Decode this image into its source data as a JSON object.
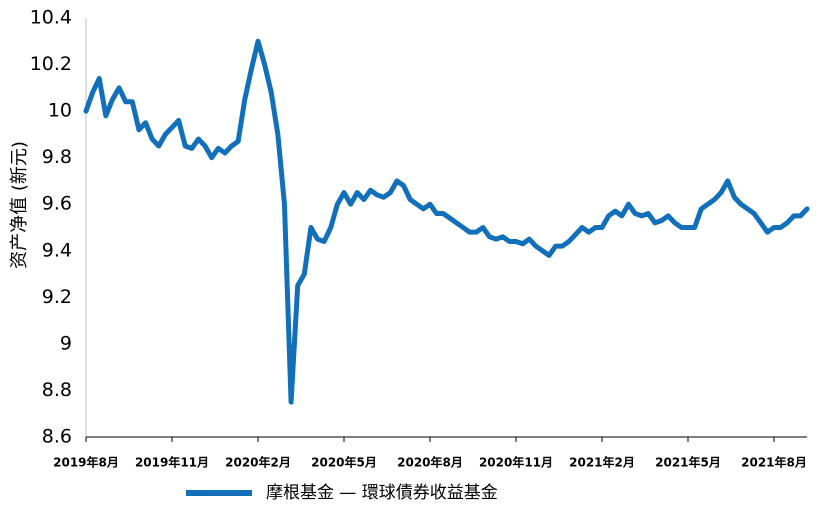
{
  "chart_data": {
    "type": "line",
    "y_label": "资产净值 (新元)",
    "categories": [
      "2019年8月",
      null,
      null,
      null,
      null,
      null,
      null,
      null,
      null,
      null,
      null,
      null,
      null,
      "2019年11月",
      null,
      null,
      null,
      null,
      null,
      null,
      null,
      null,
      null,
      null,
      null,
      null,
      "2020年2月",
      null,
      null,
      null,
      null,
      null,
      null,
      null,
      null,
      null,
      null,
      null,
      null,
      "2020年5月",
      null,
      null,
      null,
      null,
      null,
      null,
      null,
      null,
      null,
      null,
      null,
      null,
      "2020年8月",
      null,
      null,
      null,
      null,
      null,
      null,
      null,
      null,
      null,
      null,
      null,
      null,
      "2020年11月",
      null,
      null,
      null,
      null,
      null,
      null,
      null,
      null,
      null,
      null,
      null,
      null,
      "2021年2月",
      null,
      null,
      null,
      null,
      null,
      null,
      null,
      null,
      null,
      null,
      null,
      null,
      "2021年5月",
      null,
      null,
      null,
      null,
      null,
      null,
      null,
      null,
      null,
      null,
      null,
      null,
      "2021年8月",
      null,
      null,
      null,
      null,
      null
    ],
    "series": [
      {
        "name": "摩根基金 — 環球債券收益基金",
        "color": "#1170b9",
        "values": [
          10.0,
          10.08,
          10.14,
          9.98,
          10.05,
          10.1,
          10.04,
          10.04,
          9.92,
          9.95,
          9.88,
          9.85,
          9.9,
          9.93,
          9.96,
          9.85,
          9.84,
          9.88,
          9.85,
          9.8,
          9.84,
          9.82,
          9.85,
          9.87,
          10.05,
          10.18,
          10.3,
          10.2,
          10.08,
          9.9,
          9.6,
          8.75,
          9.25,
          9.3,
          9.5,
          9.45,
          9.44,
          9.5,
          9.6,
          9.65,
          9.6,
          9.65,
          9.62,
          9.66,
          9.64,
          9.63,
          9.65,
          9.7,
          9.68,
          9.62,
          9.6,
          9.58,
          9.6,
          9.56,
          9.56,
          9.54,
          9.52,
          9.5,
          9.48,
          9.48,
          9.5,
          9.46,
          9.45,
          9.46,
          9.44,
          9.44,
          9.43,
          9.45,
          9.42,
          9.4,
          9.38,
          9.42,
          9.42,
          9.44,
          9.47,
          9.5,
          9.48,
          9.5,
          9.5,
          9.55,
          9.57,
          9.55,
          9.6,
          9.56,
          9.55,
          9.56,
          9.52,
          9.53,
          9.55,
          9.52,
          9.5,
          9.5,
          9.5,
          9.58,
          9.6,
          9.62,
          9.65,
          9.7,
          9.63,
          9.6,
          9.58,
          9.56,
          9.52,
          9.48,
          9.5,
          9.5,
          9.52,
          9.55,
          9.55,
          9.58
        ]
      }
    ],
    "ylim": [
      8.6,
      10.4
    ],
    "yticks": [
      8.6,
      8.8,
      9,
      9.2,
      9.4,
      9.6,
      9.8,
      10,
      10.2,
      10.4
    ],
    "grid": false,
    "legend": "bottom"
  }
}
